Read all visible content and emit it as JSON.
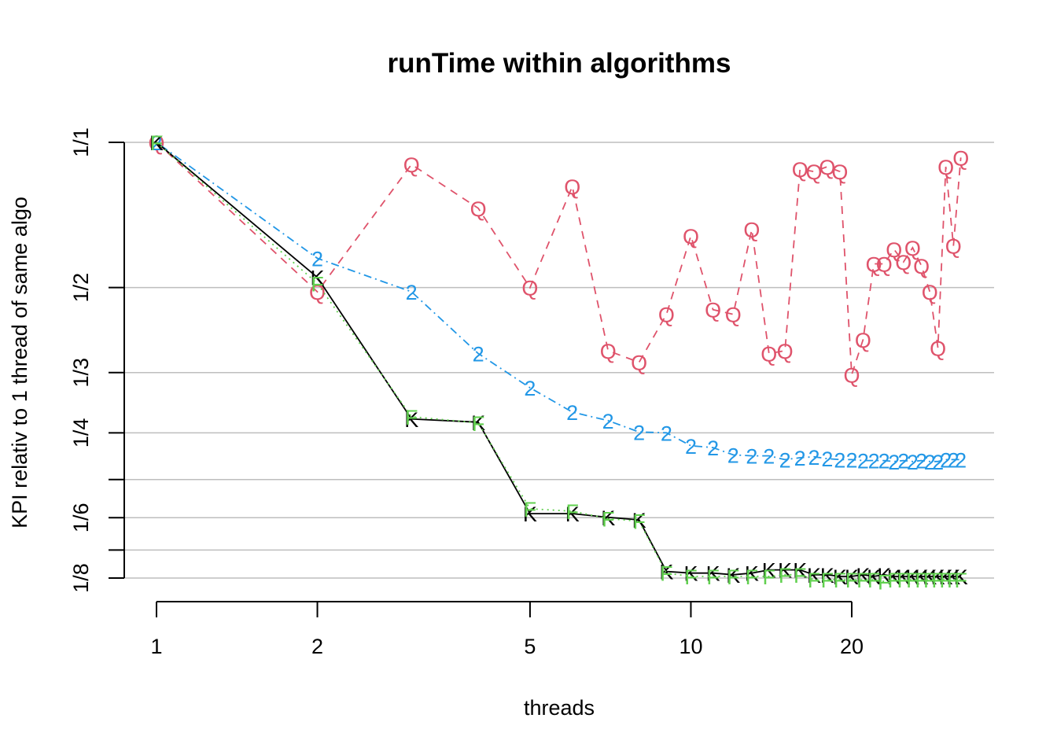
{
  "chart_data": {
    "type": "line",
    "title": "runTime within algorithms",
    "xlabel": "threads",
    "ylabel": "KPI relativ to 1 thread of same algo",
    "x_scale": "log",
    "y_scale": "log",
    "xlim": [
      1,
      32
    ],
    "ylim": [
      0.125,
      1
    ],
    "x_ticks": [
      1,
      2,
      5,
      10,
      20
    ],
    "x_tick_labels": [
      "1",
      "2",
      "5",
      "10",
      "20"
    ],
    "y_gridlines": [
      1,
      0.5,
      0.3333,
      0.25,
      0.2,
      0.1667,
      0.1429,
      0.125
    ],
    "y_ticks": [
      1,
      0.5,
      0.3333,
      0.25,
      0.1667,
      0.125
    ],
    "y_tick_labels": [
      "1/1",
      "1/2",
      "1/3",
      "1/4",
      "1/6",
      "1/8"
    ],
    "grid": true,
    "x": [
      1,
      2,
      3,
      4,
      5,
      6,
      7,
      8,
      9,
      10,
      11,
      12,
      13,
      14,
      15,
      16,
      17,
      18,
      19,
      20,
      21,
      22,
      23,
      24,
      25,
      26,
      27,
      28,
      29,
      30,
      31,
      32
    ],
    "series": [
      {
        "symbol": "Q",
        "color": "#DF536B",
        "line": "dashed",
        "values": [
          1.0,
          0.49,
          0.9,
          0.73,
          0.5,
          0.81,
          0.37,
          0.35,
          0.44,
          0.64,
          0.45,
          0.44,
          0.66,
          0.365,
          0.37,
          0.88,
          0.87,
          0.89,
          0.87,
          0.33,
          0.39,
          0.56,
          0.56,
          0.6,
          0.565,
          0.605,
          0.555,
          0.49,
          0.375,
          0.89,
          0.61,
          0.93
        ]
      },
      {
        "symbol": "2",
        "color": "#2297E6",
        "line": "dotdash",
        "values": [
          1.0,
          0.575,
          0.49,
          0.365,
          0.31,
          0.276,
          0.265,
          0.251,
          0.25,
          0.235,
          0.233,
          0.225,
          0.224,
          0.224,
          0.22,
          0.222,
          0.223,
          0.221,
          0.22,
          0.22,
          0.219,
          0.219,
          0.219,
          0.218,
          0.219,
          0.218,
          0.219,
          0.218,
          0.218,
          0.22,
          0.22,
          0.22
        ]
      },
      {
        "symbol": "K",
        "color": "#000000",
        "line": "solid",
        "values": [
          1.0,
          0.525,
          0.267,
          0.263,
          0.17,
          0.17,
          0.167,
          0.165,
          0.129,
          0.128,
          0.128,
          0.127,
          0.128,
          0.13,
          0.13,
          0.13,
          0.127,
          0.127,
          0.126,
          0.126,
          0.127,
          0.126,
          0.127,
          0.126,
          0.126,
          0.126,
          0.126,
          0.126,
          0.126,
          0.126,
          0.126,
          0.126
        ]
      },
      {
        "symbol": "F",
        "color": "#61D04F",
        "line": "dotted",
        "values": [
          1.0,
          0.51,
          0.27,
          0.262,
          0.174,
          0.172,
          0.166,
          0.164,
          0.128,
          0.126,
          0.126,
          0.126,
          0.126,
          0.126,
          0.127,
          0.127,
          0.124,
          0.124,
          0.124,
          0.124,
          0.124,
          0.124,
          0.123,
          0.124,
          0.124,
          0.124,
          0.124,
          0.124,
          0.124,
          0.124,
          0.124,
          0.124
        ]
      }
    ]
  }
}
